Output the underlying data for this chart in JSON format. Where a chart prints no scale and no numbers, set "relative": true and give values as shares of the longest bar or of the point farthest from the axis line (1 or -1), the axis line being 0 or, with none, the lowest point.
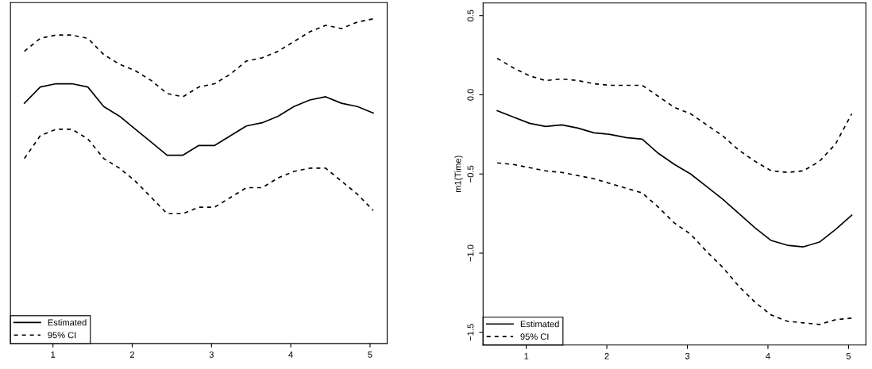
{
  "chart_data": [
    {
      "type": "line",
      "relative": true,
      "x": [
        0.64,
        0.84,
        1.04,
        1.24,
        1.44,
        1.64,
        1.84,
        2.04,
        2.24,
        2.44,
        2.64,
        2.84,
        3.04,
        3.24,
        3.44,
        3.64,
        3.84,
        4.04,
        4.24,
        4.44,
        4.64,
        4.84,
        5.04
      ],
      "xlim": [
        0.464,
        5.216
      ],
      "xticks": [
        1,
        2,
        3,
        4,
        5
      ],
      "tick_labels": "x",
      "legend": "bottom left",
      "grid": false,
      "series": [
        {
          "name": "Estimated",
          "color": "#000000",
          "line_style": "solid",
          "values": [
            0.74,
            0.79,
            0.8,
            0.8,
            0.79,
            0.73,
            0.7,
            0.66,
            0.62,
            0.58,
            0.58,
            0.61,
            0.61,
            0.64,
            0.67,
            0.68,
            0.7,
            0.73,
            0.75,
            0.76,
            0.74,
            0.73,
            0.71
          ]
        },
        {
          "name": "95% CI",
          "color": "#000000",
          "line_style": "dashed",
          "values": [
            0.9,
            0.94,
            0.95,
            0.95,
            0.94,
            0.89,
            0.86,
            0.84,
            0.81,
            0.77,
            0.76,
            0.79,
            0.8,
            0.83,
            0.87,
            0.88,
            0.9,
            0.93,
            0.96,
            0.98,
            0.97,
            0.99,
            1.0
          ]
        },
        {
          "color": "#000000",
          "line_style": "dashed",
          "values": [
            0.57,
            0.64,
            0.66,
            0.66,
            0.63,
            0.57,
            0.54,
            0.5,
            0.45,
            0.4,
            0.4,
            0.42,
            0.42,
            0.45,
            0.48,
            0.48,
            0.51,
            0.53,
            0.54,
            0.54,
            0.5,
            0.46,
            0.41
          ]
        }
      ]
    },
    {
      "type": "line",
      "ylabel": "m1(Time)",
      "x": [
        0.64,
        0.84,
        1.04,
        1.24,
        1.44,
        1.64,
        1.84,
        2.04,
        2.24,
        2.44,
        2.64,
        2.84,
        3.04,
        3.24,
        3.44,
        3.64,
        3.84,
        4.04,
        4.24,
        4.44,
        4.64,
        4.84,
        5.04
      ],
      "xlim": [
        0.464,
        5.216
      ],
      "xticks": [
        1,
        2,
        3,
        4,
        5
      ],
      "ylim": [
        -1.58,
        0.58
      ],
      "yticks": [
        {
          "value": -1.5,
          "label": "−1.5"
        },
        {
          "value": -1.0,
          "label": "−1.0"
        },
        {
          "value": -0.5,
          "label": "−0.5"
        },
        {
          "value": 0,
          "label": "0.0"
        },
        0.5
      ],
      "legend": "bottom left",
      "grid": false,
      "series": [
        {
          "name": "Estimated",
          "color": "#000000",
          "line_style": "solid",
          "values": [
            -0.1,
            -0.14,
            -0.18,
            -0.2,
            -0.19,
            -0.21,
            -0.24,
            -0.25,
            -0.27,
            -0.28,
            -0.37,
            -0.44,
            -0.5,
            -0.58,
            -0.66,
            -0.75,
            -0.84,
            -0.92,
            -0.95,
            -0.96,
            -0.93,
            -0.85,
            -0.76
          ]
        },
        {
          "name": "95% CI",
          "color": "#000000",
          "line_style": "dashed",
          "values": [
            0.23,
            0.17,
            0.12,
            0.09,
            0.1,
            0.09,
            0.07,
            0.06,
            0.06,
            0.06,
            -0.01,
            -0.08,
            -0.12,
            -0.19,
            -0.26,
            -0.35,
            -0.42,
            -0.48,
            -0.49,
            -0.48,
            -0.42,
            -0.31,
            -0.12
          ]
        },
        {
          "color": "#000000",
          "line_style": "dashed",
          "values": [
            -0.43,
            -0.44,
            -0.46,
            -0.48,
            -0.49,
            -0.51,
            -0.53,
            -0.56,
            -0.59,
            -0.62,
            -0.71,
            -0.81,
            -0.88,
            -0.99,
            -1.09,
            -1.21,
            -1.31,
            -1.39,
            -1.43,
            -1.44,
            -1.45,
            -1.42,
            -1.41
          ]
        }
      ]
    }
  ]
}
